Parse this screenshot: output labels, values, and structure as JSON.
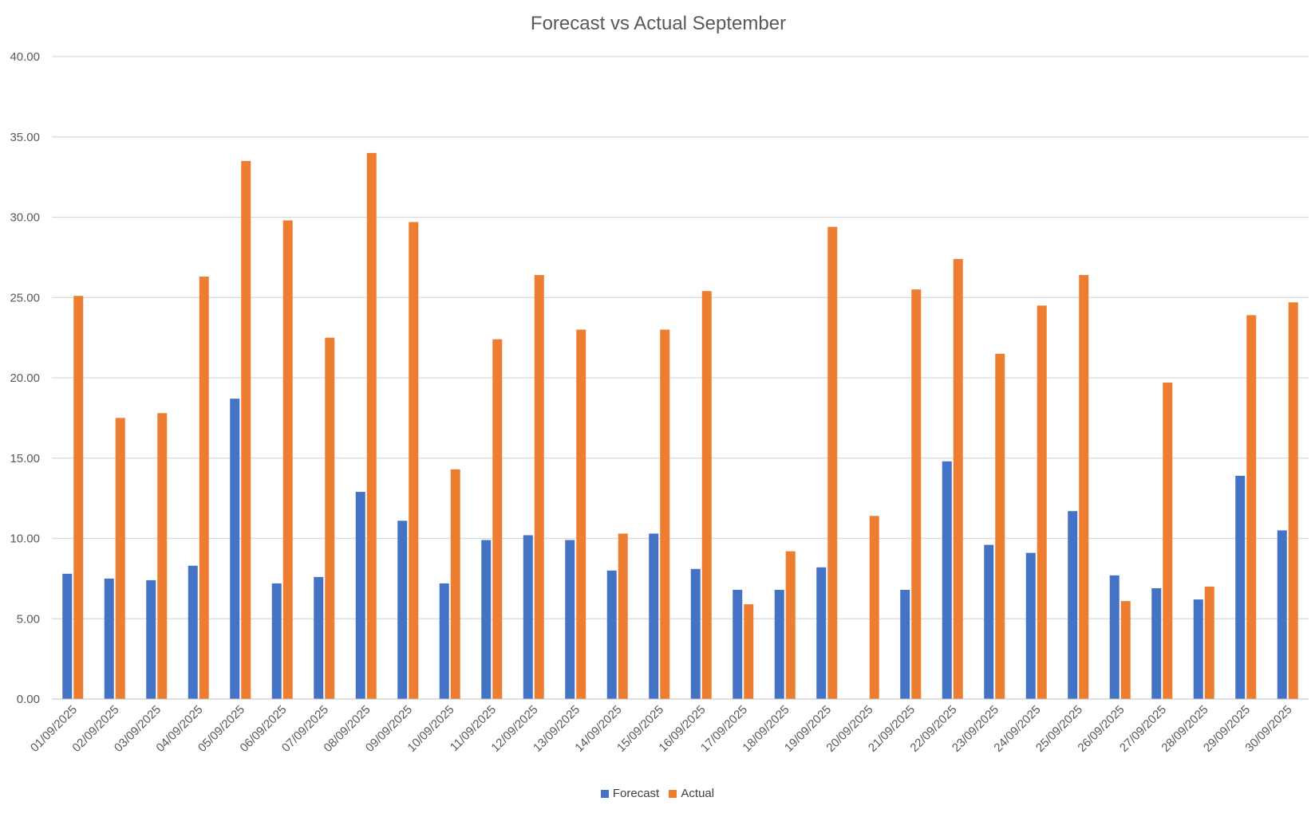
{
  "chart_data": {
    "type": "bar",
    "title": "Forecast vs Actual September",
    "xlabel": "",
    "ylabel": "",
    "ylim": [
      0,
      40
    ],
    "y_ticks": [
      "0.00",
      "5.00",
      "10.00",
      "15.00",
      "20.00",
      "25.00",
      "30.00",
      "35.00",
      "40.00"
    ],
    "grid": true,
    "legend_position": "bottom",
    "categories": [
      "01/09/2025",
      "02/09/2025",
      "03/09/2025",
      "04/09/2025",
      "05/09/2025",
      "06/09/2025",
      "07/09/2025",
      "08/09/2025",
      "09/09/2025",
      "10/09/2025",
      "11/09/2025",
      "12/09/2025",
      "13/09/2025",
      "14/09/2025",
      "15/09/2025",
      "16/09/2025",
      "17/09/2025",
      "18/09/2025",
      "19/09/2025",
      "20/09/2025",
      "21/09/2025",
      "22/09/2025",
      "23/09/2025",
      "24/09/2025",
      "25/09/2025",
      "26/09/2025",
      "27/09/2025",
      "28/09/2025",
      "29/09/2025",
      "30/09/2025"
    ],
    "series": [
      {
        "name": "Forecast",
        "color": "#4472c4",
        "values": [
          7.8,
          7.5,
          7.4,
          8.3,
          18.7,
          7.2,
          7.6,
          12.9,
          11.1,
          7.2,
          9.9,
          10.2,
          9.9,
          8.0,
          10.3,
          8.1,
          6.8,
          6.8,
          8.2,
          0,
          6.8,
          14.8,
          9.6,
          9.1,
          11.7,
          7.7,
          6.9,
          6.2,
          13.9,
          10.5
        ]
      },
      {
        "name": "Actual",
        "color": "#ed7d31",
        "values": [
          25.1,
          17.5,
          17.8,
          26.3,
          33.5,
          29.8,
          22.5,
          34.0,
          29.7,
          14.3,
          22.4,
          26.4,
          23.0,
          10.3,
          23.0,
          25.4,
          5.9,
          9.2,
          29.4,
          11.4,
          25.5,
          27.4,
          21.5,
          24.5,
          26.4,
          6.1,
          19.7,
          7.0,
          23.9,
          24.7
        ]
      }
    ]
  }
}
